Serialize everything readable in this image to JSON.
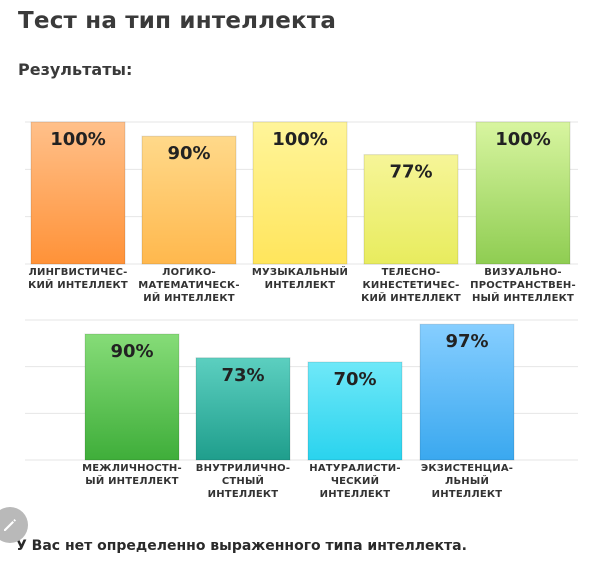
{
  "header": {
    "title": "Тест на тип интеллекта",
    "subtitle": "Результаты:"
  },
  "chart_data": {
    "type": "bar",
    "ylim": [
      0,
      100
    ],
    "grid": true,
    "rows": [
      {
        "categories": [
          [
            "ЛИНГВИСТИЧЕС-",
            "КИЙ ИНТЕЛЛЕКТ"
          ],
          [
            "ЛОГИКО-",
            "МАТЕМАТИЧЕСК-",
            "ИЙ ИНТЕЛЛЕКТ"
          ],
          [
            "МУЗЫКАЛЬНЫЙ",
            "ИНТЕЛЛЕКТ"
          ],
          [
            "ТЕЛЕСНО-",
            "КИНЕСТЕТИЧЕС-",
            "КИЙ ИНТЕЛЛЕКТ"
          ],
          [
            "ВИЗУАЛЬНО-",
            "ПРОСТРАНСТВЕН-",
            "НЫЙ ИНТЕЛЛЕКТ"
          ]
        ],
        "values": [
          100,
          90,
          100,
          77,
          100
        ],
        "labels": [
          "100%",
          "90%",
          "100%",
          "77%",
          "100%"
        ],
        "colors": [
          [
            "#ffc08a",
            "#ff9238"
          ],
          [
            "#ffd98a",
            "#ffb84d"
          ],
          [
            "#fff59a",
            "#ffe55c"
          ],
          [
            "#f6f598",
            "#e8ec5e"
          ],
          [
            "#d8f5a0",
            "#8fcd52"
          ]
        ]
      },
      {
        "categories": [
          [
            "МЕЖЛИЧНОСТН-",
            "ЫЙ ИНТЕЛЛЕКТ"
          ],
          [
            "ВНУТРИЛИЧНО-",
            "СТНЫЙ",
            "ИНТЕЛЛЕКТ"
          ],
          [
            "НАТУРАЛИСТИ-",
            "ЧЕСКИЙ",
            "ИНТЕЛЛЕКТ"
          ],
          [
            "ЭКЗИСТЕНЦИА-",
            "ЛЬНЫЙ",
            "ИНТЕЛЛЕКТ"
          ]
        ],
        "values": [
          90,
          73,
          70,
          97
        ],
        "labels": [
          "90%",
          "73%",
          "70%",
          "97%"
        ],
        "colors": [
          [
            "#86dc78",
            "#3fae3a"
          ],
          [
            "#5ccfc0",
            "#1f9e8c"
          ],
          [
            "#6fe8f8",
            "#2ad3ee"
          ],
          [
            "#86ceff",
            "#3aa8ef"
          ]
        ]
      }
    ]
  },
  "footer": {
    "conclusion": "У Вас нет определенно выраженного типа интеллекта."
  },
  "icons": {
    "edit": "pencil-icon"
  }
}
